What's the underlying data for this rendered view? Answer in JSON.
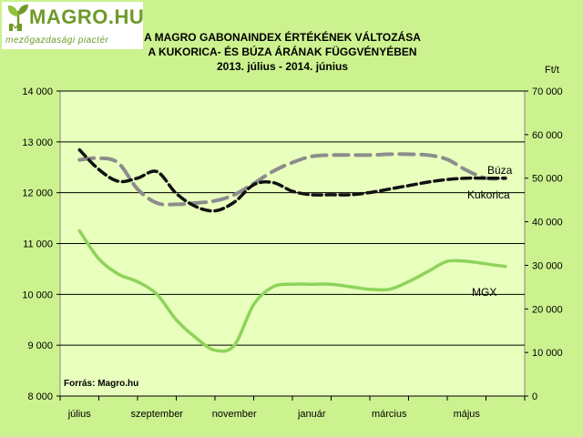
{
  "header": {
    "logo_text": "MAGRO.HU",
    "logo_tagline": "mezőgazdasági piactér",
    "title_lines": [
      "A MAGRO GABONAINDEX ÉRTÉKÉNEK VÁLTOZÁSA",
      "A KUKORICA- ÉS BÚZA ÁRÁNAK FÜGGVÉNYÉBEN",
      "2013. július - 2014. június"
    ]
  },
  "source_note": "Forrás:  Magro.hu",
  "colors": {
    "background": "#ccf28f",
    "plot": "#e8ffbd",
    "mgx": "#8fd35a",
    "buza": "#8c8c8c",
    "kukorica": "#111111",
    "logo": "#6f9a2a"
  },
  "chart_data": {
    "type": "line",
    "title": "A MAGRO GABONAINDEX ÉRTÉKÉNEK VÁLTOZÁSA A KUKORICA- ÉS BÚZA ÁRÁNAK FÜGGVÉNYÉBEN 2013. július - 2014. június",
    "x_tick_labels": [
      "július",
      "szeptember",
      "november",
      "január",
      "március",
      "május"
    ],
    "x_tick_positions": [
      0,
      2,
      4,
      6,
      8,
      10
    ],
    "x": [
      0,
      0.5,
      1,
      1.5,
      2,
      2.5,
      3,
      3.5,
      4,
      4.5,
      5,
      5.5,
      6,
      6.5,
      7,
      7.5,
      8,
      8.5,
      9,
      9.5,
      10,
      10.5,
      11
    ],
    "xlim": [
      -0.5,
      11.5
    ],
    "y_left": {
      "ylim": [
        8000,
        14000
      ],
      "ticks": [
        "8 000",
        "9 000",
        "10 000",
        "11 000",
        "12 000",
        "13 000",
        "14 000"
      ],
      "tick_values": [
        8000,
        9000,
        10000,
        11000,
        12000,
        13000,
        14000
      ]
    },
    "y_right": {
      "ylim": [
        0,
        70000
      ],
      "unit": "Ft/t",
      "ticks": [
        "0",
        "10 000",
        "20 000",
        "30 000",
        "40 000",
        "50 000",
        "60 000",
        "70 000"
      ],
      "tick_values": [
        0,
        10000,
        20000,
        30000,
        40000,
        50000,
        60000,
        70000
      ]
    },
    "grid": true,
    "series": [
      {
        "name": "MGX",
        "axis": "left",
        "style": "solid",
        "values": [
          11250,
          10700,
          10400,
          10250,
          10000,
          9500,
          9150,
          8900,
          9000,
          9800,
          10150,
          10200,
          10200,
          10200,
          10150,
          10100,
          10100,
          10250,
          10450,
          10650,
          10650,
          10600,
          10550
        ]
      },
      {
        "name": "Búza",
        "axis": "right",
        "style": "dashed",
        "values": [
          54200,
          54600,
          53500,
          47500,
          44300,
          44000,
          44300,
          44800,
          46200,
          48800,
          51600,
          53600,
          55000,
          55300,
          55300,
          55300,
          55500,
          55500,
          55300,
          54300,
          51800,
          50000,
          50000
        ]
      },
      {
        "name": "Kukorica",
        "axis": "right",
        "style": "dashed",
        "values": [
          56500,
          52000,
          49300,
          50000,
          51500,
          46500,
          43500,
          42500,
          44500,
          48500,
          49000,
          47000,
          46200,
          46200,
          46200,
          46700,
          47500,
          48300,
          49100,
          49700,
          50000,
          50000,
          50000
        ]
      }
    ]
  }
}
